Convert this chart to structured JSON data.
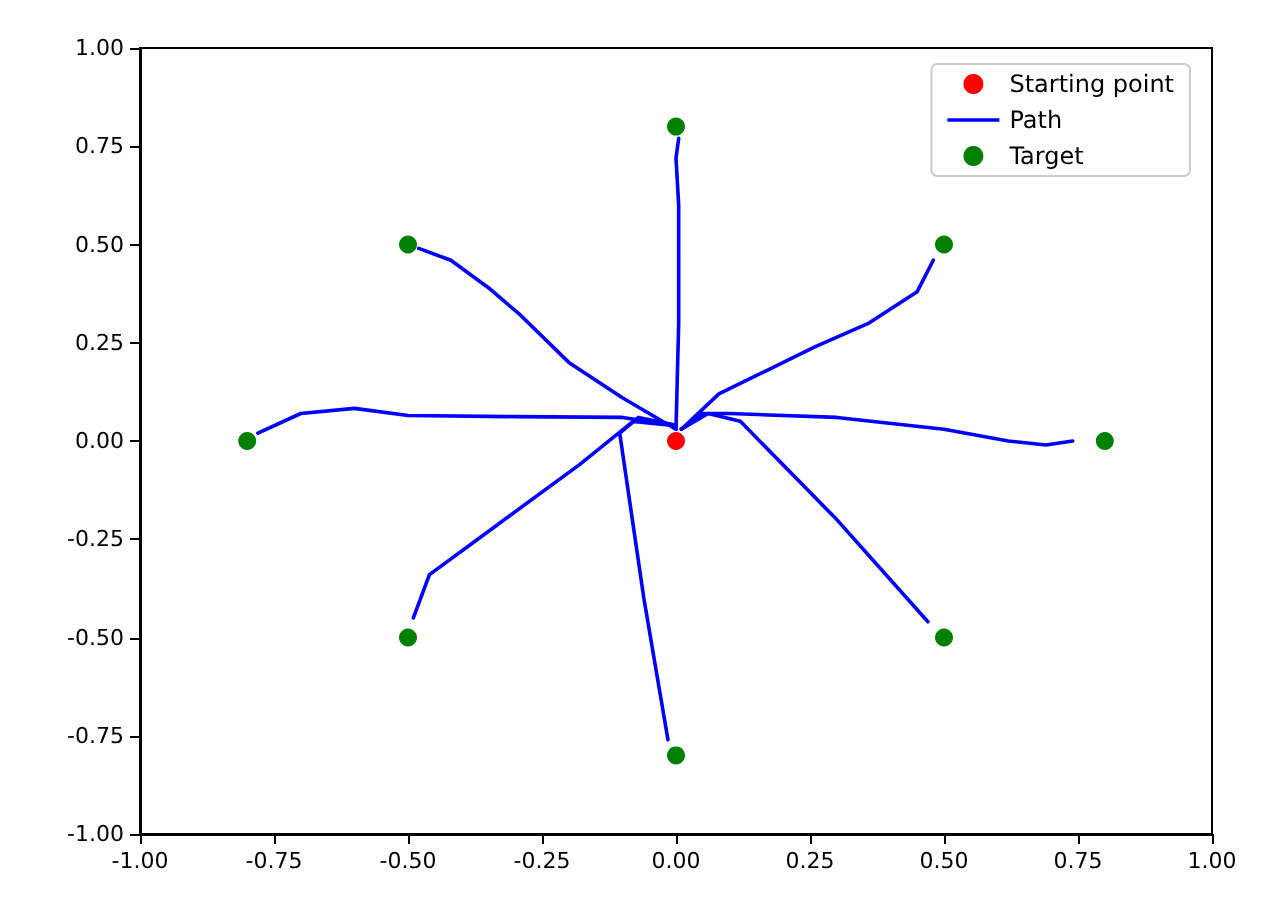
{
  "chart_data": {
    "type": "line",
    "xlim": [
      -1,
      1
    ],
    "ylim": [
      -1,
      1
    ],
    "xticks": [
      {
        "value": -1,
        "label": "-1.00"
      },
      {
        "value": -0.75,
        "label": "-0.75"
      },
      {
        "value": -0.5,
        "label": "-0.50"
      },
      {
        "value": -0.25,
        "label": "-0.25"
      },
      {
        "value": 0,
        "label": "0.00"
      },
      {
        "value": 0.25,
        "label": "0.25"
      },
      {
        "value": 0.5,
        "label": "0.50"
      },
      {
        "value": 0.75,
        "label": "0.75"
      },
      {
        "value": 1,
        "label": "1.00"
      }
    ],
    "yticks": [
      {
        "value": -1,
        "label": "-1.00"
      },
      {
        "value": -0.75,
        "label": "-0.75"
      },
      {
        "value": -0.5,
        "label": "-0.50"
      },
      {
        "value": -0.25,
        "label": "-0.25"
      },
      {
        "value": 0,
        "label": "0.00"
      },
      {
        "value": 0.25,
        "label": "0.25"
      },
      {
        "value": 0.5,
        "label": "0.50"
      },
      {
        "value": 0.75,
        "label": "0.75"
      },
      {
        "value": 1,
        "label": "1.00"
      }
    ],
    "grid": false,
    "legend": "top right",
    "series": [
      {
        "name": "Starting point",
        "type": "scatter",
        "marker": "circle",
        "color": "#ff0000",
        "x": [
          0
        ],
        "values": [
          0
        ]
      },
      {
        "name": "Path",
        "marker": "none",
        "line_style": "solid",
        "color": "#0000ff",
        "x": [
          0,
          0.005,
          0.005,
          0.0,
          0.005
        ],
        "values": [
          0.03,
          0.3,
          0.6,
          0.72,
          0.77
        ]
      },
      {
        "marker": "none",
        "line_style": "solid",
        "color": "#0000ff",
        "x": [
          0,
          -0.1,
          -0.2,
          -0.29,
          -0.35,
          -0.42,
          -0.48
        ],
        "values": [
          0.03,
          0.11,
          0.2,
          0.32,
          0.39,
          0.46,
          0.49
        ]
      },
      {
        "marker": "none",
        "line_style": "solid",
        "color": "#0000ff",
        "x": [
          0,
          -0.1,
          -0.3,
          -0.5,
          -0.6,
          -0.7,
          -0.78
        ],
        "values": [
          0.04,
          0.06,
          0.062,
          0.065,
          0.083,
          0.07,
          0.02
        ]
      },
      {
        "marker": "none",
        "line_style": "solid",
        "color": "#0000ff",
        "x": [
          0.01,
          0.08,
          0.17,
          0.26,
          0.36,
          0.45,
          0.48
        ],
        "values": [
          0.03,
          0.12,
          0.18,
          0.24,
          0.3,
          0.38,
          0.46
        ]
      },
      {
        "marker": "none",
        "line_style": "solid",
        "color": "#0000ff",
        "x": [
          0.01,
          0.05,
          0.1,
          0.3,
          0.5,
          0.62,
          0.69,
          0.74
        ],
        "values": [
          0.03,
          0.07,
          0.07,
          0.06,
          0.03,
          0.0,
          -0.01,
          0.0
        ]
      },
      {
        "marker": "none",
        "line_style": "solid",
        "color": "#0000ff",
        "x": [
          0.01,
          0.06,
          0.12,
          0.3,
          0.47
        ],
        "values": [
          0.03,
          0.07,
          0.05,
          -0.2,
          -0.46
        ]
      },
      {
        "marker": "none",
        "line_style": "solid",
        "color": "#0000ff",
        "x": [
          0,
          -0.07,
          -0.105,
          -0.06,
          -0.015
        ],
        "values": [
          0.04,
          0.06,
          0.02,
          -0.4,
          -0.76
        ]
      },
      {
        "marker": "none",
        "line_style": "solid",
        "color": "#0000ff",
        "x": [
          -0.01,
          -0.08,
          -0.18,
          -0.34,
          -0.46,
          -0.49
        ],
        "values": [
          0.04,
          0.05,
          -0.06,
          -0.22,
          -0.34,
          -0.45
        ]
      },
      {
        "name": "Target",
        "type": "scatter",
        "marker": "circle",
        "color": "#008000",
        "x": [
          0,
          -0.5,
          -0.8,
          0.5,
          0.8,
          0.5,
          0,
          -0.5
        ],
        "values": [
          0.8,
          0.5,
          0,
          0.5,
          0,
          -0.5,
          -0.8,
          -0.5
        ]
      }
    ]
  }
}
